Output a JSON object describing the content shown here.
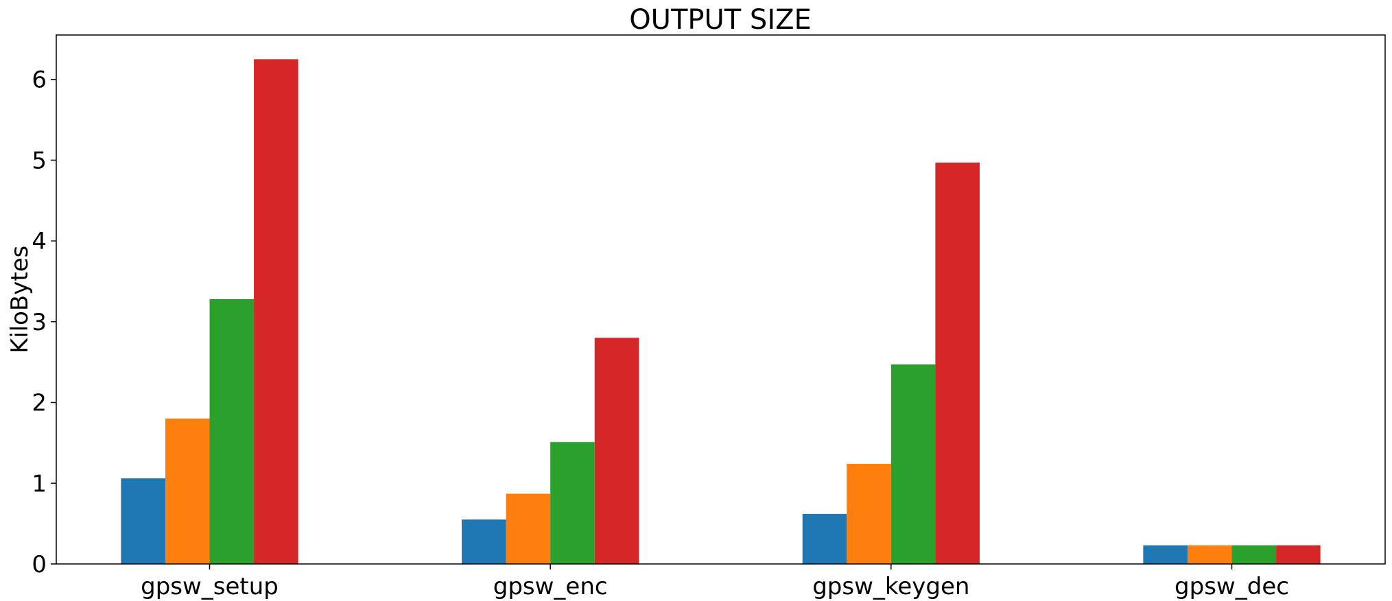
{
  "chart_data": {
    "type": "bar",
    "title": "OUTPUT SIZE",
    "xlabel": "",
    "ylabel": "KiloBytes",
    "categories": [
      "gpsw_setup",
      "gpsw_enc",
      "gpsw_keygen",
      "gpsw_dec"
    ],
    "series": [
      {
        "color": "#1f77b4",
        "values": [
          1.06,
          0.55,
          0.62,
          0.23
        ]
      },
      {
        "color": "#ff7f0e",
        "values": [
          1.8,
          0.87,
          1.24,
          0.23
        ]
      },
      {
        "color": "#2ca02c",
        "values": [
          3.28,
          1.51,
          2.47,
          0.23
        ]
      },
      {
        "color": "#d62728",
        "values": [
          6.25,
          2.8,
          4.97,
          0.23
        ]
      }
    ],
    "ylim": [
      0,
      6.55
    ],
    "yticks": [
      0,
      1,
      2,
      3,
      4,
      5,
      6
    ],
    "grid": false,
    "legend": "none"
  }
}
